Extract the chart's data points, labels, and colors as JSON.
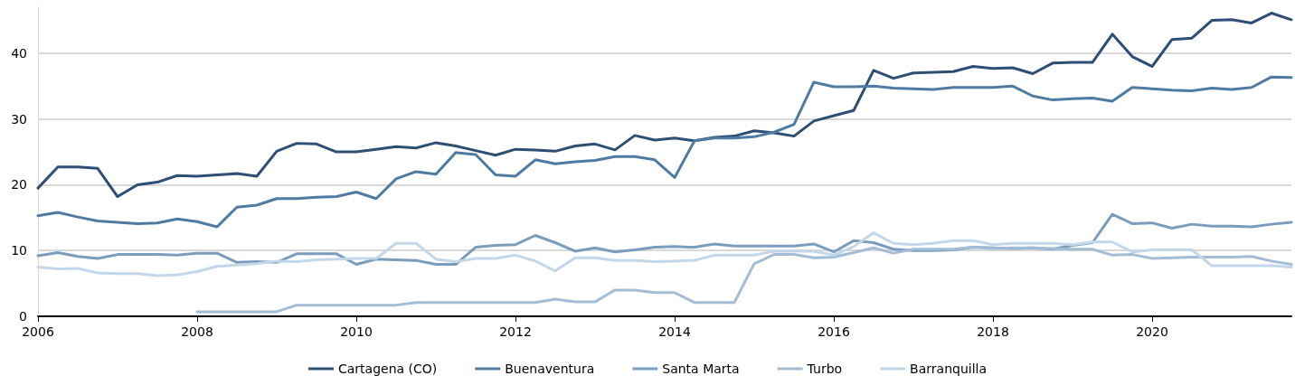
{
  "chart_data": {
    "type": "line",
    "x": [
      2006,
      2006.25,
      2006.5,
      2006.75,
      2007,
      2007.25,
      2007.5,
      2007.75,
      2008,
      2008.25,
      2008.5,
      2008.75,
      2009,
      2009.25,
      2009.5,
      2009.75,
      2010,
      2010.25,
      2010.5,
      2010.75,
      2011,
      2011.25,
      2011.5,
      2011.75,
      2012,
      2012.25,
      2012.5,
      2012.75,
      2013,
      2013.25,
      2013.5,
      2013.75,
      2014,
      2014.25,
      2014.5,
      2014.75,
      2015,
      2015.25,
      2015.5,
      2015.75,
      2016,
      2016.25,
      2016.5,
      2016.75,
      2017,
      2017.25,
      2017.5,
      2017.75,
      2018,
      2018.25,
      2018.5,
      2018.75,
      2019,
      2019.25,
      2019.5,
      2019.75,
      2020,
      2020.25,
      2020.5,
      2020.75,
      2021,
      2021.25,
      2021.5,
      2021.75
    ],
    "series": [
      {
        "name": "Cartagena (CO)",
        "color": "#2e4e76",
        "values": [
          19.5,
          22.7,
          22.7,
          22.5,
          18.2,
          20.0,
          20.4,
          21.4,
          21.3,
          21.5,
          21.7,
          21.3,
          25.1,
          26.3,
          26.2,
          25.0,
          25.0,
          25.4,
          25.8,
          25.6,
          26.4,
          25.9,
          25.2,
          24.5,
          25.4,
          25.3,
          25.1,
          25.9,
          26.2,
          25.3,
          27.5,
          26.8,
          27.1,
          26.7,
          27.2,
          27.4,
          28.2,
          27.9,
          27.4,
          29.7,
          30.5,
          31.3,
          37.4,
          36.2,
          37.0,
          37.1,
          37.2,
          38.0,
          37.7,
          37.8,
          36.9,
          38.5,
          38.6,
          38.6,
          42.9,
          39.5,
          38.0,
          42.1,
          42.3,
          45.0,
          45.1,
          44.6,
          46.1,
          45.1
        ]
      },
      {
        "name": "Buenaventura",
        "color": "#4f7ba3",
        "values": [
          15.3,
          15.8,
          15.1,
          14.5,
          14.3,
          14.1,
          14.2,
          14.8,
          14.4,
          13.6,
          16.6,
          16.9,
          17.9,
          17.9,
          18.1,
          18.2,
          18.9,
          17.9,
          20.9,
          22.0,
          21.6,
          24.9,
          24.6,
          21.5,
          21.3,
          23.8,
          23.2,
          23.5,
          23.7,
          24.3,
          24.3,
          23.8,
          21.1,
          26.7,
          27.1,
          27.1,
          27.3,
          28.0,
          29.2,
          35.6,
          34.9,
          34.9,
          35.0,
          34.7,
          34.6,
          34.5,
          34.8,
          34.8,
          34.8,
          35.0,
          33.5,
          32.9,
          33.1,
          33.2,
          32.7,
          34.8,
          34.6,
          34.4,
          34.3,
          34.7,
          34.5,
          34.8,
          36.4,
          36.3
        ]
      },
      {
        "name": "Santa Marta",
        "color": "#7a9dbd",
        "values": [
          9.2,
          9.7,
          9.1,
          8.8,
          9.4,
          9.4,
          9.4,
          9.3,
          9.6,
          9.6,
          8.2,
          8.3,
          8.2,
          9.5,
          9.5,
          9.5,
          7.9,
          8.7,
          8.6,
          8.5,
          7.9,
          7.9,
          10.5,
          10.8,
          10.9,
          12.3,
          11.2,
          9.9,
          10.4,
          9.8,
          10.1,
          10.5,
          10.6,
          10.5,
          11.0,
          10.7,
          10.7,
          10.7,
          10.7,
          11.0,
          9.8,
          11.5,
          11.2,
          10.2,
          10.0,
          10.0,
          10.1,
          10.5,
          10.4,
          10.3,
          10.4,
          10.2,
          10.8,
          11.2,
          15.5,
          14.1,
          14.2,
          13.4,
          14.0,
          13.7,
          13.7,
          13.6,
          14.0,
          14.3
        ]
      },
      {
        "name": "Turbo",
        "color": "#a3bdd6",
        "values": [
          null,
          null,
          null,
          null,
          null,
          null,
          null,
          null,
          0.7,
          0.7,
          0.7,
          0.7,
          0.7,
          1.7,
          1.7,
          1.7,
          1.7,
          1.7,
          1.7,
          2.1,
          2.1,
          2.1,
          2.1,
          2.1,
          2.1,
          2.1,
          2.6,
          2.2,
          2.2,
          4.0,
          4.0,
          3.6,
          3.6,
          2.1,
          2.1,
          2.1,
          8.0,
          9.4,
          9.4,
          8.9,
          9.0,
          9.7,
          10.4,
          9.6,
          10.2,
          10.2,
          10.2,
          10.5,
          10.3,
          10.4,
          10.4,
          10.3,
          10.2,
          10.2,
          9.3,
          9.4,
          8.8,
          8.9,
          9.0,
          9.0,
          9.0,
          9.1,
          8.4,
          7.9
        ]
      },
      {
        "name": "Barranquilla",
        "color": "#c2d7ea",
        "values": [
          7.5,
          7.2,
          7.3,
          6.6,
          6.5,
          6.5,
          6.2,
          6.3,
          6.8,
          7.6,
          7.8,
          8.0,
          8.4,
          8.3,
          8.6,
          8.7,
          8.8,
          8.8,
          11.1,
          11.1,
          8.7,
          8.3,
          8.8,
          8.8,
          9.3,
          8.4,
          6.9,
          8.9,
          8.9,
          8.5,
          8.5,
          8.3,
          8.4,
          8.5,
          9.3,
          9.3,
          9.3,
          9.9,
          9.9,
          9.9,
          9.3,
          10.6,
          12.7,
          11.1,
          10.9,
          11.1,
          11.5,
          11.5,
          10.9,
          11.1,
          11.1,
          11.1,
          10.9,
          11.3,
          11.3,
          9.8,
          10.1,
          10.1,
          10.1,
          7.7,
          7.7,
          7.7,
          7.7,
          7.5
        ]
      }
    ],
    "xlim": [
      2006,
      2021.75
    ],
    "xticks": [
      2006,
      2008,
      2010,
      2012,
      2014,
      2016,
      2018,
      2020
    ],
    "ylim": [
      0,
      47
    ],
    "yticks": [
      0,
      10,
      20,
      30,
      40
    ],
    "grid": "y",
    "legend": "bottom",
    "marker": "none",
    "line_style": "solid"
  }
}
